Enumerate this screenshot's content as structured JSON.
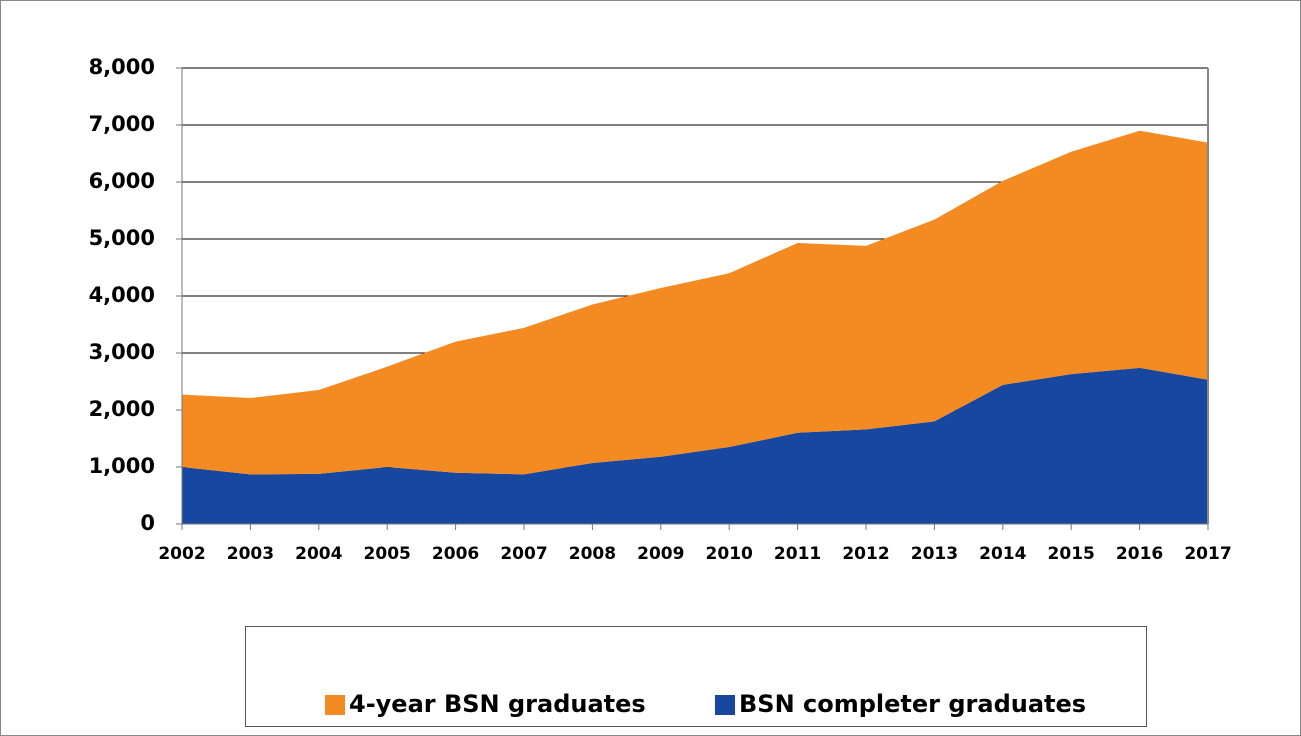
{
  "chart_data": {
    "type": "stacked_area",
    "categories": [
      "2002",
      "2003",
      "2004",
      "2005",
      "2006",
      "2007",
      "2008",
      "2009",
      "2010",
      "2011",
      "2012",
      "2013",
      "2014",
      "2015",
      "2016",
      "2017"
    ],
    "series": [
      {
        "name": "4-year BSN graduates",
        "color": "#f48a22",
        "values": [
          1270,
          1340,
          1470,
          1760,
          2300,
          2570,
          2780,
          2960,
          3050,
          3330,
          3220,
          3540,
          3580,
          3900,
          4160,
          4160
        ]
      },
      {
        "name": "BSN completer graduates",
        "color": "#17479e",
        "values": [
          1000,
          870,
          880,
          1000,
          900,
          870,
          1070,
          1180,
          1350,
          1600,
          1660,
          1800,
          2440,
          2630,
          2740,
          2530
        ]
      }
    ],
    "ylim": [
      0,
      8000
    ],
    "yticks": [
      0,
      {
        "value": 1000,
        "label": "1,000"
      },
      {
        "value": 2000,
        "label": "2,000"
      },
      {
        "value": 3000,
        "label": "3,000"
      },
      {
        "value": 4000,
        "label": "4,000"
      },
      {
        "value": 5000,
        "label": "5,000"
      },
      {
        "value": 6000,
        "label": "6,000"
      },
      {
        "value": 7000,
        "label": "7,000"
      },
      {
        "value": 8000,
        "label": "8,000"
      }
    ],
    "grid": true,
    "legend": "bottom"
  }
}
